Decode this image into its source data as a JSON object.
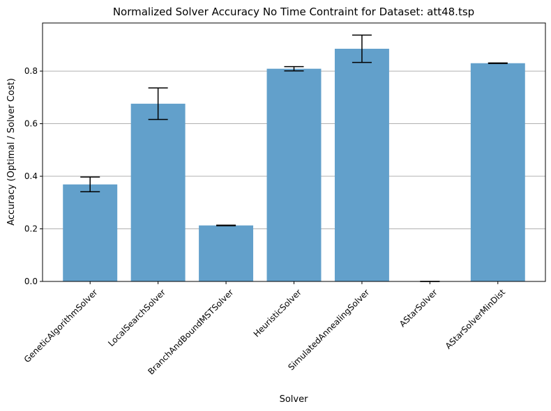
{
  "chart_data": {
    "type": "bar",
    "title": "Normalized Solver Accuracy No Time Contraint for Dataset: att48.tsp",
    "xlabel": "Solver",
    "ylabel": "Accuracy (Optimal / Solver Cost)",
    "categories": [
      "GeneticAlgorithmSolver",
      "LocalSearchSolver",
      "BranchAndBoundMSTSolver",
      "HeuristicSolver",
      "SimulatedAnnealingSolver",
      "AStarSolver",
      "AStarSolverMinDist"
    ],
    "values": [
      0.369,
      0.676,
      0.213,
      0.809,
      0.885,
      0.0,
      0.83
    ],
    "errors": [
      0.028,
      0.06,
      0.001,
      0.008,
      0.052,
      0.0,
      0.001
    ],
    "ylim": [
      0,
      0.983
    ],
    "yticks": [
      0.0,
      0.2,
      0.4,
      0.6,
      0.8
    ],
    "ytick_labels": [
      "0.0",
      "0.2",
      "0.4",
      "0.6",
      "0.8"
    ],
    "grid": "y",
    "legend": "none",
    "bar_color": "#6fa6cf",
    "bar_color_rendered": "#62a0cb",
    "error_color": "#000000"
  }
}
